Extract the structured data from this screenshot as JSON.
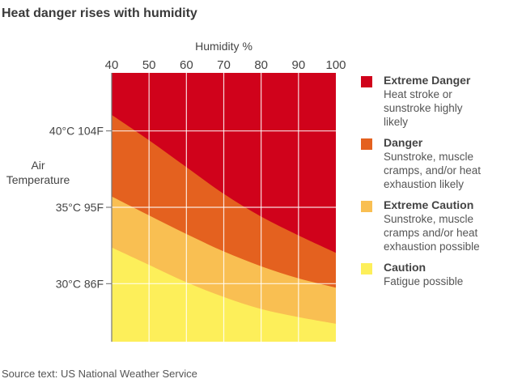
{
  "title": "Heat danger rises with humidity",
  "source": "Source text: US National Weather Service",
  "chart_data": {
    "type": "area",
    "title": "Heat danger rises with humidity",
    "xlabel": "Humidity %",
    "ylabel_lines": [
      "Air",
      "Temperature"
    ],
    "xlim": [
      40,
      100
    ],
    "ylim": [
      26.2,
      43.8
    ],
    "x_ticks": [
      40,
      50,
      60,
      70,
      80,
      90,
      100
    ],
    "y_ticks": [
      {
        "value": 40,
        "label_c": "40°C",
        "label_f": "104F"
      },
      {
        "value": 35,
        "label_c": "35°C",
        "label_f": "95F"
      },
      {
        "value": 30,
        "label_c": "30°C",
        "label_f": "86F"
      }
    ],
    "grid": true,
    "legend_position": "right",
    "x": [
      40,
      50,
      60,
      70,
      80,
      90,
      100
    ],
    "bands": [
      {
        "name": "Extreme Danger",
        "description": "Heat stroke or sunstroke highly likely",
        "color": "#d0021b",
        "lower_boundary_c": [
          41.05,
          39.39,
          37.63,
          35.88,
          34.39,
          33.16,
          32.02
        ]
      },
      {
        "name": "Danger",
        "description": "Sunstroke, muscle cramps, and/or heat exhaustion likely",
        "color": "#e4611f",
        "lower_boundary_c": [
          35.71,
          34.47,
          33.25,
          32.11,
          31.14,
          30.35,
          29.74
        ]
      },
      {
        "name": "Extreme Caution",
        "description": "Sunstroke, muscle cramps and/or heat exhaustion possible",
        "color": "#f9bf52",
        "lower_boundary_c": [
          32.37,
          31.23,
          30.09,
          29.13,
          28.34,
          27.81,
          27.37
        ]
      },
      {
        "name": "Caution",
        "description": "Fatigue possible",
        "color": "#fdef5a",
        "lower_boundary_c": [
          26.2,
          26.2,
          26.2,
          26.2,
          26.2,
          26.2,
          26.2
        ]
      }
    ]
  },
  "legend": [
    {
      "title": "Extreme Danger",
      "lines": [
        "Heat stroke or",
        "sunstroke highly",
        "likely"
      ]
    },
    {
      "title": "Danger",
      "lines": [
        "Sunstroke, muscle",
        "cramps, and/or heat",
        "exhaustion likely"
      ]
    },
    {
      "title": "Extreme Caution",
      "lines": [
        "Sunstroke, muscle",
        "cramps and/or heat",
        "exhaustion possible"
      ]
    },
    {
      "title": "Caution",
      "lines": [
        "Fatigue possible"
      ]
    }
  ]
}
